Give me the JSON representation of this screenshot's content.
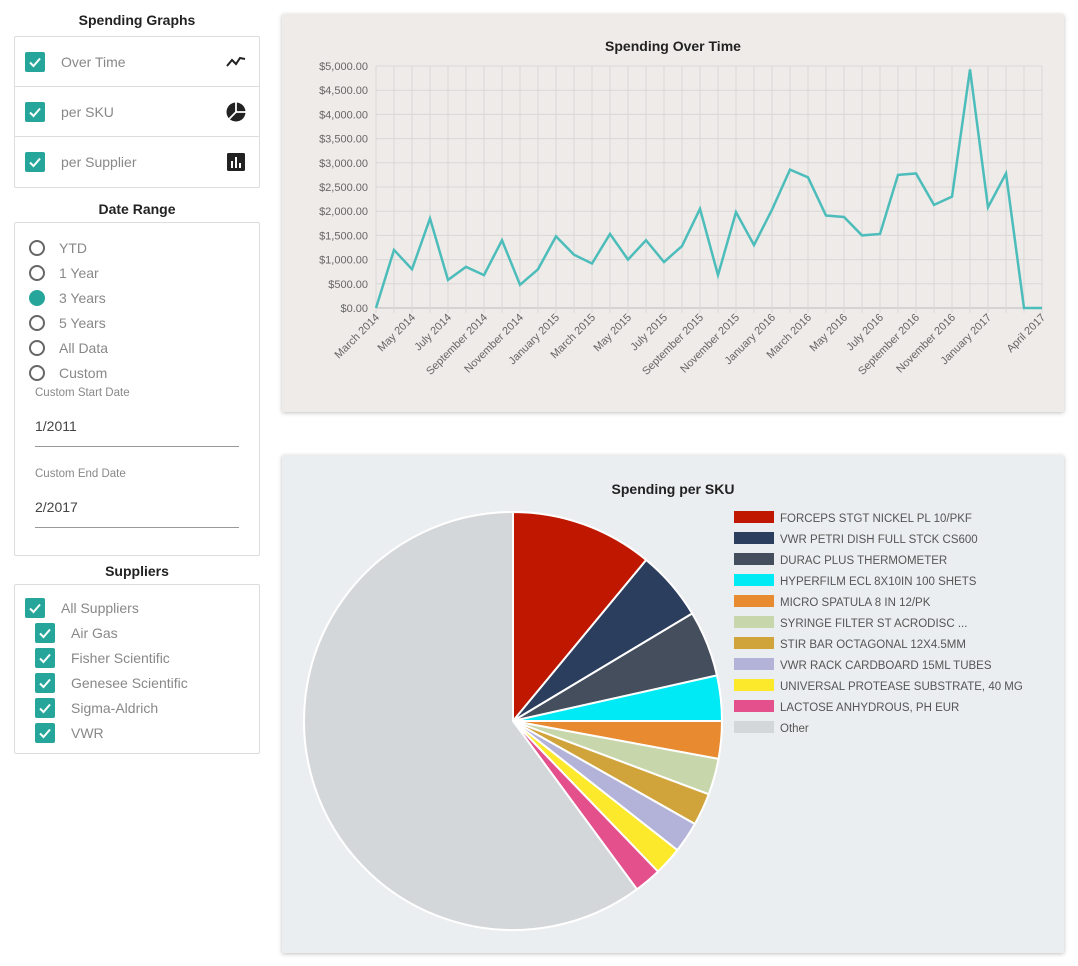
{
  "sidebar": {
    "graphs_title": "Spending Graphs",
    "graphs": [
      {
        "label": "Over Time",
        "checked": true,
        "icon": "line-chart-icon"
      },
      {
        "label": "per SKU",
        "checked": true,
        "icon": "pie-chart-icon"
      },
      {
        "label": "per Supplier",
        "checked": true,
        "icon": "bar-chart-icon"
      }
    ],
    "date_title": "Date Range",
    "date_options": [
      {
        "label": "YTD",
        "selected": false
      },
      {
        "label": "1 Year",
        "selected": false
      },
      {
        "label": "3 Years",
        "selected": true
      },
      {
        "label": "5 Years",
        "selected": false
      },
      {
        "label": "All Data",
        "selected": false
      },
      {
        "label": "Custom",
        "selected": false
      }
    ],
    "custom_start": {
      "label": "Custom Start Date",
      "value": "1/2011"
    },
    "custom_end": {
      "label": "Custom End Date",
      "value": "2/2017"
    },
    "suppliers_title": "Suppliers",
    "suppliers": [
      {
        "label": "All Suppliers",
        "checked": true
      },
      {
        "label": "Air Gas",
        "checked": true
      },
      {
        "label": "Fisher Scientific",
        "checked": true
      },
      {
        "label": "Genesee Scientific",
        "checked": true
      },
      {
        "label": "Sigma-Aldrich",
        "checked": true
      },
      {
        "label": "VWR",
        "checked": true
      }
    ]
  },
  "colors": {
    "accent": "#26a69a",
    "line": "#4dbdbb"
  },
  "chart_data": [
    {
      "type": "line",
      "title": "Spending Over Time",
      "ylim": [
        0,
        5000
      ],
      "y_ticks": [
        "$0.00",
        "$500.00",
        "$1,000.00",
        "$1,500.00",
        "$2,000.00",
        "$2,500.00",
        "$3,000.00",
        "$3,500.00",
        "$4,000.00",
        "$4,500.00",
        "$5,000.00"
      ],
      "x_tick_labels": [
        "March 2014",
        "May 2014",
        "July 2014",
        "September 2014",
        "November 2014",
        "January 2015",
        "March 2015",
        "May 2015",
        "July 2015",
        "September 2015",
        "November 2015",
        "January 2016",
        "March 2016",
        "May 2016",
        "July 2016",
        "September 2016",
        "November 2016",
        "January 2017",
        "April 2017"
      ],
      "grid": true,
      "series": [
        {
          "values": [
            0,
            1200,
            800,
            1850,
            580,
            850,
            680,
            1400,
            480,
            800,
            1480,
            1100,
            920,
            1530,
            1000,
            1400,
            950,
            1280,
            2050,
            680,
            1980,
            1300,
            2030,
            2860,
            2700,
            1910,
            1880,
            1500,
            1530,
            2750,
            2780,
            2130,
            2300,
            4930,
            2080,
            2780,
            0,
            0
          ]
        }
      ]
    },
    {
      "type": "pie",
      "title": "Spending per SKU",
      "legend": "right",
      "slices": [
        {
          "label": "FORCEPS STGT NICKEL PL 10/PKF",
          "value": 11.0,
          "color": "#c01800"
        },
        {
          "label": "VWR PETRI DISH FULL STCK CS600",
          "value": 5.4,
          "color": "#2c3e5e"
        },
        {
          "label": "DURAC PLUS THERMOMETER",
          "value": 5.1,
          "color": "#444e5c"
        },
        {
          "label": "HYPERFILM ECL 8X10IN 100 SHETS",
          "value": 3.5,
          "color": "#00eaf6"
        },
        {
          "label": "MICRO SPATULA 8 IN 12/PK",
          "value": 2.9,
          "color": "#e88b30"
        },
        {
          "label": "SYRINGE FILTER ST ACRODISC ...",
          "value": 2.8,
          "color": "#c8d6ac"
        },
        {
          "label": "STIR BAR OCTAGONAL 12X4.5MM",
          "value": 2.5,
          "color": "#d0a43a"
        },
        {
          "label": "VWR RACK CARDBOARD 15ML TUBES",
          "value": 2.4,
          "color": "#b3b3da"
        },
        {
          "label": "UNIVERSAL PROTEASE SUBSTRATE, 40 MG",
          "value": 2.2,
          "color": "#fde92c"
        },
        {
          "label": "LACTOSE ANHYDROUS, PH EUR",
          "value": 2.1,
          "color": "#e4508c"
        },
        {
          "label": "Other",
          "value": 60.1,
          "color": "#d4d7d9"
        }
      ]
    }
  ]
}
